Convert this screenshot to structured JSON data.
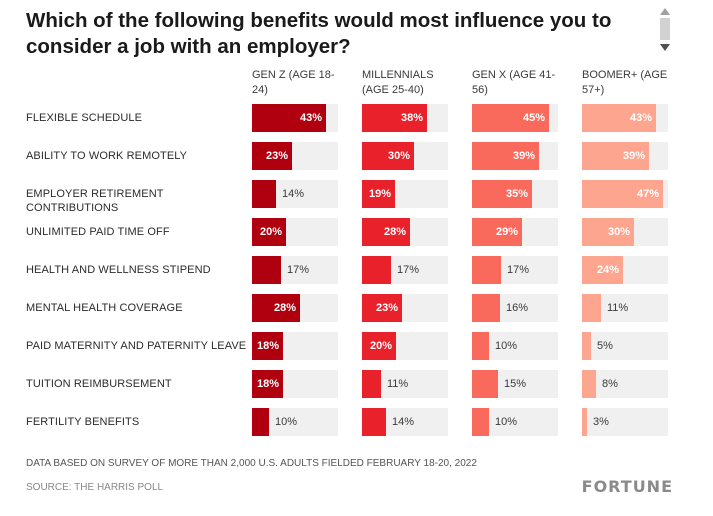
{
  "chart_data": {
    "type": "bar",
    "title": "Which of the following benefits would most influence you to consider a job with an employer?",
    "categories": [
      "FLEXIBLE SCHEDULE",
      "ABILITY TO WORK REMOTELY",
      "EMPLOYER RETIREMENT CONTRIBUTIONS",
      "UNLIMITED PAID TIME OFF",
      "HEALTH AND WELLNESS STIPEND",
      "MENTAL HEALTH COVERAGE",
      "PAID MATERNITY AND PATERNITY LEAVE",
      "TUITION REIMBURSEMENT",
      "FERTILITY BENEFITS"
    ],
    "series": [
      {
        "name": "GEN Z (AGE 18-24)",
        "color": "#b0000f",
        "values": [
          43,
          23,
          14,
          20,
          17,
          28,
          18,
          18,
          10
        ]
      },
      {
        "name": "MILLENNIALS (AGE 25-40)",
        "color": "#e8212a",
        "values": [
          38,
          30,
          19,
          28,
          17,
          23,
          20,
          11,
          14
        ]
      },
      {
        "name": "GEN X (AGE 41-56)",
        "color": "#f96a5c",
        "values": [
          45,
          39,
          35,
          29,
          17,
          16,
          10,
          15,
          10
        ]
      },
      {
        "name": "BOOMER+ (AGE 57+)",
        "color": "#fda58e",
        "values": [
          43,
          39,
          47,
          30,
          24,
          11,
          5,
          8,
          3
        ]
      }
    ],
    "value_suffix": "%",
    "ylim": [
      0,
      50
    ],
    "legend": "column headers"
  },
  "footnote": "DATA BASED ON SURVEY OF MORE THAN 2,000 U.S. ADULTS FIELDED FEBRUARY 18-20, 2022",
  "source": "SOURCE: THE HARRIS POLL",
  "logo": "FORTUNE"
}
